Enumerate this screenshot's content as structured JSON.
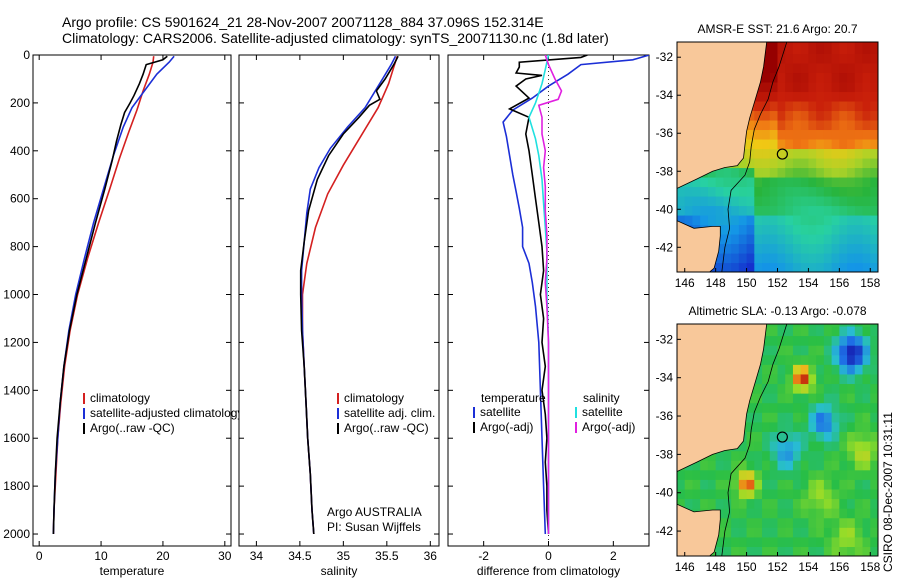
{
  "figure": {
    "title_line1": "Argo profile: CS 5901624_21 28-Nov-2007 20071128_884 37.096S 152.314E",
    "title_line2": "Climatology: CARS2006. Satellite-adjusted climatology: synTS_20071130.nc (1.8d later)",
    "side_stamp": "CSIRO 08-Dec-2007 10:31:11"
  },
  "colors": {
    "climatology": "#d42020",
    "satellite": "#1c2fd6",
    "argo": "#000000",
    "satellite_salinity": "#20e0e0",
    "argo_salinity": "#e020e0",
    "land": "#f8c89a",
    "profile_marker": "#000000"
  },
  "annotations": {
    "credit_line1": "Argo AUSTRALIA",
    "credit_line2": "PI: Susan Wijffels"
  },
  "chart_data": [
    {
      "id": "temperature",
      "type": "line",
      "xlabel": "temperature",
      "xlim": [
        -1,
        31
      ],
      "xticks": [
        0,
        10,
        20,
        30
      ],
      "ylim": [
        2050,
        0
      ],
      "yticks": [
        0,
        200,
        400,
        600,
        800,
        1000,
        1200,
        1400,
        1600,
        1800,
        2000
      ],
      "legend": [
        "climatology",
        "satellite-adjusted climatology",
        "Argo(..raw -QC)"
      ],
      "series": [
        {
          "name": "climatology",
          "color_key": "climatology",
          "points": [
            [
              18.5,
              5
            ],
            [
              18.4,
              30
            ],
            [
              17.8,
              80
            ],
            [
              16.8,
              150
            ],
            [
              15.8,
              230
            ],
            [
              14.5,
              320
            ],
            [
              13.0,
              430
            ],
            [
              11.4,
              560
            ],
            [
              9.6,
              700
            ],
            [
              7.8,
              850
            ],
            [
              6.2,
              1000
            ],
            [
              5.0,
              1150
            ],
            [
              4.1,
              1300
            ],
            [
              3.5,
              1450
            ],
            [
              3.0,
              1600
            ],
            [
              2.7,
              1750
            ],
            [
              2.4,
              1900
            ],
            [
              2.3,
              2000
            ]
          ]
        },
        {
          "name": "satellite-adjusted climatology",
          "color_key": "satellite",
          "points": [
            [
              21.8,
              5
            ],
            [
              21.0,
              30
            ],
            [
              19.0,
              80
            ],
            [
              17.0,
              150
            ],
            [
              15.0,
              220
            ],
            [
              13.6,
              300
            ],
            [
              12.0,
              420
            ],
            [
              10.4,
              560
            ],
            [
              8.8,
              700
            ],
            [
              7.3,
              850
            ],
            [
              5.9,
              1000
            ],
            [
              4.8,
              1150
            ],
            [
              4.0,
              1300
            ],
            [
              3.4,
              1450
            ],
            [
              3.0,
              1600
            ],
            [
              2.6,
              1750
            ],
            [
              2.4,
              1900
            ],
            [
              2.3,
              2000
            ]
          ]
        },
        {
          "name": "Argo(..raw -QC)",
          "color_key": "argo",
          "points": [
            [
              20.7,
              5
            ],
            [
              20.0,
              20
            ],
            [
              17.3,
              40
            ],
            [
              16.8,
              80
            ],
            [
              16.2,
              120
            ],
            [
              15.3,
              170
            ],
            [
              14.7,
              200
            ],
            [
              13.8,
              240
            ],
            [
              13.2,
              290
            ],
            [
              12.5,
              360
            ],
            [
              11.8,
              440
            ],
            [
              10.6,
              560
            ],
            [
              9.1,
              700
            ],
            [
              7.6,
              850
            ],
            [
              6.1,
              1000
            ],
            [
              4.9,
              1150
            ],
            [
              4.0,
              1300
            ],
            [
              3.4,
              1450
            ],
            [
              2.9,
              1600
            ],
            [
              2.6,
              1750
            ],
            [
              2.4,
              1900
            ],
            [
              2.3,
              2000
            ]
          ]
        }
      ]
    },
    {
      "id": "salinity",
      "type": "line",
      "xlabel": "salinity",
      "xlim": [
        33.8,
        36.1
      ],
      "xticks": [
        34,
        34.5,
        35,
        35.5,
        36
      ],
      "ylim": [
        2050,
        0
      ],
      "yticks": [
        0,
        200,
        400,
        600,
        800,
        1000,
        1200,
        1400,
        1600,
        1800,
        2000
      ],
      "legend": [
        "climatology",
        "satellite adj. clim.",
        "Argo(..raw -QC)"
      ],
      "series": [
        {
          "name": "climatology",
          "color_key": "climatology",
          "points": [
            [
              35.62,
              5
            ],
            [
              35.58,
              50
            ],
            [
              35.52,
              120
            ],
            [
              35.4,
              220
            ],
            [
              35.2,
              340
            ],
            [
              35.0,
              460
            ],
            [
              34.82,
              580
            ],
            [
              34.68,
              720
            ],
            [
              34.58,
              870
            ],
            [
              34.53,
              1000
            ],
            [
              34.53,
              1150
            ],
            [
              34.55,
              1300
            ],
            [
              34.57,
              1450
            ],
            [
              34.59,
              1600
            ],
            [
              34.62,
              1750
            ],
            [
              34.64,
              1900
            ],
            [
              34.66,
              2000
            ]
          ]
        },
        {
          "name": "satellite adj. clim.",
          "color_key": "satellite",
          "points": [
            [
              35.6,
              5
            ],
            [
              35.55,
              40
            ],
            [
              35.45,
              100
            ],
            [
              35.35,
              160
            ],
            [
              35.25,
              220
            ],
            [
              35.05,
              300
            ],
            [
              34.85,
              390
            ],
            [
              34.72,
              470
            ],
            [
              34.62,
              560
            ],
            [
              34.58,
              660
            ],
            [
              34.55,
              780
            ],
            [
              34.52,
              900
            ],
            [
              34.52,
              1000
            ],
            [
              34.53,
              1150
            ],
            [
              34.55,
              1300
            ],
            [
              34.57,
              1450
            ],
            [
              34.59,
              1600
            ],
            [
              34.62,
              1750
            ],
            [
              34.64,
              1900
            ],
            [
              34.66,
              2000
            ]
          ]
        },
        {
          "name": "Argo(..raw -QC)",
          "color_key": "argo",
          "points": [
            [
              35.63,
              5
            ],
            [
              35.58,
              40
            ],
            [
              35.48,
              100
            ],
            [
              35.38,
              150
            ],
            [
              35.42,
              185
            ],
            [
              35.3,
              210
            ],
            [
              35.18,
              260
            ],
            [
              35.0,
              330
            ],
            [
              34.83,
              420
            ],
            [
              34.7,
              520
            ],
            [
              34.6,
              650
            ],
            [
              34.55,
              780
            ],
            [
              34.51,
              900
            ],
            [
              34.51,
              1000
            ],
            [
              34.52,
              1150
            ],
            [
              34.55,
              1300
            ],
            [
              34.57,
              1450
            ],
            [
              34.59,
              1600
            ],
            [
              34.62,
              1750
            ],
            [
              34.64,
              1900
            ],
            [
              34.66,
              2000
            ]
          ]
        }
      ]
    },
    {
      "id": "difference",
      "type": "line",
      "xlabel": "difference from climatology",
      "xlim": [
        -3.1,
        3.1
      ],
      "xticks": [
        -2,
        0,
        2
      ],
      "ylim": [
        2050,
        0
      ],
      "yticks": [
        0,
        200,
        400,
        600,
        800,
        1000,
        1200,
        1400,
        1600,
        1800,
        2000
      ],
      "zero_line": true,
      "legend_titles": [
        "temperature",
        "salinity"
      ],
      "legend": [
        "satellite",
        "Argo(-adj)",
        "satellite",
        "Argo(-adj)"
      ],
      "series": [
        {
          "name": "satellite",
          "group": "temperature",
          "color_key": "satellite",
          "points": [
            [
              3.1,
              0
            ],
            [
              2.6,
              20
            ],
            [
              1.0,
              40
            ],
            [
              0.6,
              80
            ],
            [
              0.0,
              130
            ],
            [
              -0.5,
              180
            ],
            [
              -1.1,
              230
            ],
            [
              -1.4,
              280
            ],
            [
              -1.3,
              340
            ],
            [
              -1.2,
              420
            ],
            [
              -1.1,
              500
            ],
            [
              -1.0,
              570
            ],
            [
              -0.9,
              640
            ],
            [
              -0.8,
              720
            ],
            [
              -0.8,
              800
            ],
            [
              -0.6,
              870
            ],
            [
              -0.5,
              950
            ],
            [
              -0.4,
              1050
            ],
            [
              -0.3,
              1200
            ],
            [
              -0.25,
              1400
            ],
            [
              -0.2,
              1600
            ],
            [
              -0.15,
              1800
            ],
            [
              -0.1,
              2000
            ]
          ]
        },
        {
          "name": "Argo(-adj)",
          "group": "temperature",
          "color_key": "argo",
          "points": [
            [
              1.2,
              0
            ],
            [
              1.0,
              10
            ],
            [
              -0.9,
              30
            ],
            [
              -0.9,
              50
            ],
            [
              -1.0,
              75
            ],
            [
              -0.2,
              85
            ],
            [
              -0.7,
              100
            ],
            [
              -1.0,
              130
            ],
            [
              -0.6,
              180
            ],
            [
              -1.2,
              225
            ],
            [
              -0.6,
              260
            ],
            [
              -0.7,
              330
            ],
            [
              -0.6,
              400
            ],
            [
              -0.5,
              500
            ],
            [
              -0.4,
              600
            ],
            [
              -0.3,
              700
            ],
            [
              -0.2,
              800
            ],
            [
              -0.15,
              900
            ],
            [
              -0.25,
              1000
            ],
            [
              -0.15,
              1100
            ],
            [
              -0.2,
              1200
            ],
            [
              -0.1,
              1300
            ],
            [
              -0.2,
              1400
            ],
            [
              -0.1,
              1500
            ],
            [
              -0.05,
              1600
            ],
            [
              -0.1,
              1700
            ],
            [
              -0.05,
              1800
            ],
            [
              -0.05,
              1900
            ],
            [
              0.0,
              2000
            ]
          ]
        },
        {
          "name": "satellite",
          "group": "salinity",
          "color_key": "satellite_salinity",
          "points": [
            [
              0.0,
              0
            ],
            [
              -0.1,
              60
            ],
            [
              -0.2,
              120
            ],
            [
              -0.4,
              200
            ],
            [
              -0.6,
              260
            ],
            [
              -0.4,
              350
            ],
            [
              -0.3,
              420
            ],
            [
              -0.2,
              520
            ],
            [
              -0.15,
              620
            ],
            [
              -0.1,
              720
            ],
            [
              -0.05,
              820
            ],
            [
              -0.05,
              1000
            ],
            [
              0.0,
              1200
            ],
            [
              0.0,
              1400
            ],
            [
              0.0,
              1600
            ],
            [
              0.0,
              1800
            ],
            [
              0.0,
              2000
            ]
          ]
        },
        {
          "name": "Argo(-adj)",
          "group": "salinity",
          "color_key": "argo_salinity",
          "points": [
            [
              -0.1,
              0
            ],
            [
              0.0,
              40
            ],
            [
              0.2,
              100
            ],
            [
              0.4,
              150
            ],
            [
              0.3,
              185
            ],
            [
              -0.3,
              210
            ],
            [
              -0.2,
              260
            ],
            [
              -0.2,
              330
            ],
            [
              -0.1,
              400
            ],
            [
              -0.15,
              470
            ],
            [
              -0.1,
              550
            ],
            [
              -0.1,
              650
            ],
            [
              -0.05,
              750
            ],
            [
              -0.05,
              850
            ],
            [
              -0.1,
              950
            ],
            [
              -0.05,
              1050
            ],
            [
              0.0,
              1200
            ],
            [
              0.0,
              1400
            ],
            [
              0.0,
              1600
            ],
            [
              0.0,
              1800
            ],
            [
              0.0,
              2000
            ]
          ]
        }
      ]
    },
    {
      "id": "sst_map",
      "type": "heatmap",
      "title": "AMSR-E SST: 21.6 Argo: 20.7",
      "xlim": [
        145.5,
        158.5
      ],
      "ylim": [
        -43.3,
        -31.2
      ],
      "xticks": [
        146,
        148,
        150,
        152,
        154,
        156,
        158
      ],
      "yticks": [
        -32,
        -34,
        -36,
        -38,
        -40,
        -42
      ],
      "profile_location": [
        152.314,
        -37.096
      ],
      "field": {
        "kind": "sst",
        "units": "degC"
      }
    },
    {
      "id": "sla_map",
      "type": "heatmap",
      "title": "Altimetric SLA: -0.13 Argo: -0.078",
      "xlim": [
        145.5,
        158.5
      ],
      "ylim": [
        -43.3,
        -31.2
      ],
      "xticks": [
        146,
        148,
        150,
        152,
        154,
        156,
        158
      ],
      "yticks": [
        -32,
        -34,
        -36,
        -38,
        -40,
        -42
      ],
      "profile_location": [
        152.314,
        -37.096
      ],
      "field": {
        "kind": "sla",
        "units": "m"
      }
    }
  ]
}
